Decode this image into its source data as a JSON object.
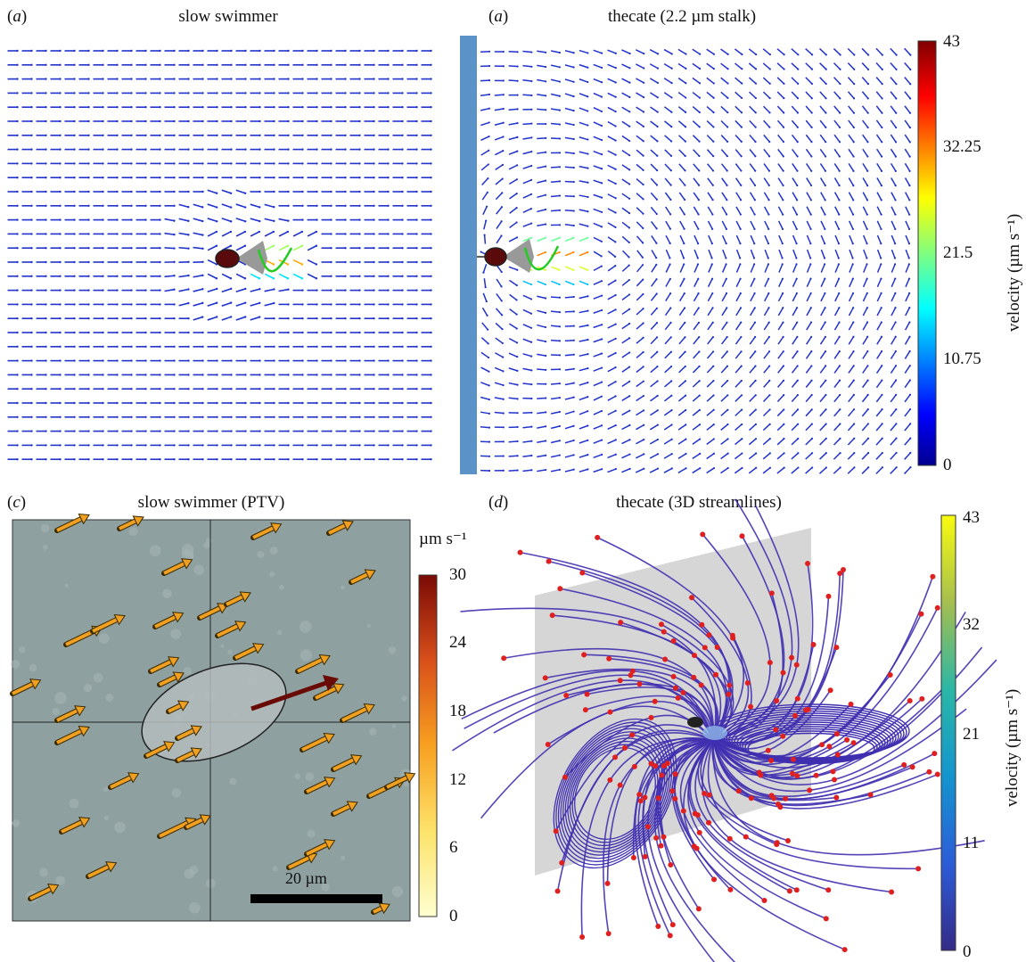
{
  "panels": {
    "a1": {
      "letter": "a",
      "title": "slow swimmer"
    },
    "a2": {
      "letter": "a",
      "title": "thecate (2.2 µm stalk)"
    },
    "c": {
      "letter": "c",
      "title": "slow swimmer (PTV)",
      "scalebar_label": "20 µm"
    },
    "d": {
      "letter": "d",
      "title": "thecate (3D streamlines)"
    }
  },
  "colorbars": {
    "top_right": {
      "label": "velocity (µm s⁻¹)",
      "ticks": [
        "43",
        "32.25",
        "21.5",
        "10.75",
        "0"
      ],
      "colormap": "jet",
      "range": [
        0,
        43
      ]
    },
    "c": {
      "unit_label": "µm s⁻¹",
      "ticks": [
        "30",
        "24",
        "18",
        "12",
        "6",
        "0"
      ],
      "colormap": "yellow-orange-red",
      "range": [
        0,
        30
      ]
    },
    "d": {
      "label": "velocity (µm s⁻¹)",
      "ticks": [
        "43",
        "32",
        "21",
        "11",
        "0"
      ],
      "colormap": "parula",
      "range": [
        0,
        43
      ]
    }
  },
  "colors": {
    "vector_blue": "#2233cc",
    "wall_blue": "#5b93c9",
    "cell_body": "#5a0a0a",
    "flagellum_green": "#22cc22",
    "arrow_orange": "#f0a020",
    "streamline_purple": "#4030b0",
    "streamline_arrow_red": "#e02020",
    "micrograph_bg": "#8fa0a0"
  }
}
